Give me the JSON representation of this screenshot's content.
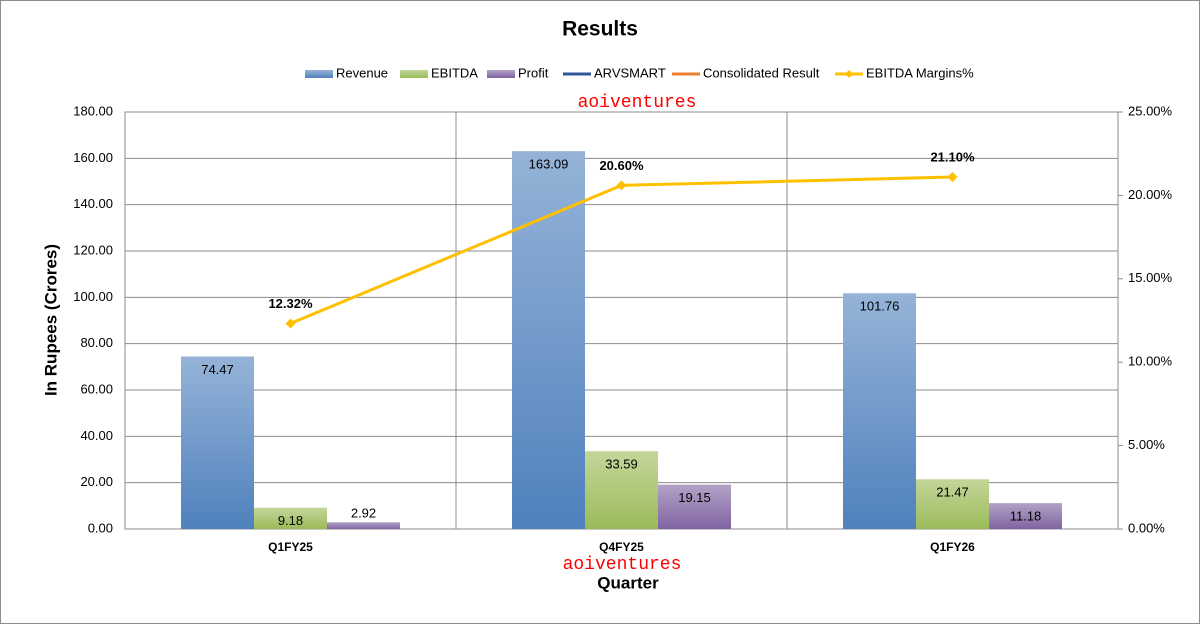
{
  "chart_data": {
    "type": "bar",
    "title": "Results",
    "x_label": "Quarter",
    "y_label": "In Rupees (Crores)",
    "annotations": [
      "aoiventures",
      "aoiventures"
    ],
    "categories": [
      "Q1FY25",
      "Q4FY25",
      "Q1FY26"
    ],
    "series": [
      {
        "name": "Revenue",
        "color": "#4f81bd",
        "type": "bar",
        "values": [
          74.47,
          163.09,
          101.76
        ]
      },
      {
        "name": "EBITDA",
        "color": "#9bbb59",
        "type": "bar",
        "values": [
          9.18,
          33.59,
          21.47
        ]
      },
      {
        "name": "Profit",
        "color": "#8064a2",
        "type": "bar",
        "values": [
          2.92,
          19.15,
          11.18
        ]
      },
      {
        "name": "ARVSMART",
        "color": "#2f5597",
        "type": "line",
        "values": [
          null,
          null,
          null
        ]
      },
      {
        "name": "Consolidated Result",
        "color": "#ed7d31",
        "type": "line",
        "values": [
          null,
          null,
          null
        ]
      },
      {
        "name": "EBITDA Margins%",
        "color": "#ffc000",
        "type": "line",
        "axis": "y2",
        "values": [
          12.32,
          20.6,
          21.1
        ],
        "value_labels": [
          "12.32%",
          "20.60%",
          "21.10%"
        ]
      }
    ],
    "ylim": [
      0,
      180
    ],
    "yticks": [
      {
        "value": 0,
        "label": "0.00"
      },
      {
        "value": 20,
        "label": "20.00"
      },
      {
        "value": 40,
        "label": "40.00"
      },
      {
        "value": 60,
        "label": "60.00"
      },
      {
        "value": 80,
        "label": "80.00"
      },
      {
        "value": 100,
        "label": "100.00"
      },
      {
        "value": 120,
        "label": "120.00"
      },
      {
        "value": 140,
        "label": "140.00"
      },
      {
        "value": 160,
        "label": "160.00"
      },
      {
        "value": 180,
        "label": "180.00"
      }
    ],
    "y2lim": [
      0,
      25
    ],
    "y2ticks": [
      {
        "value": 0,
        "label": "0.00%"
      },
      {
        "value": 5,
        "label": "5.00%"
      },
      {
        "value": 10,
        "label": "10.00%"
      },
      {
        "value": 15,
        "label": "15.00%"
      },
      {
        "value": 20,
        "label": "20.00%"
      },
      {
        "value": 25,
        "label": "25.00%"
      }
    ],
    "grid": true,
    "legend": "top"
  }
}
